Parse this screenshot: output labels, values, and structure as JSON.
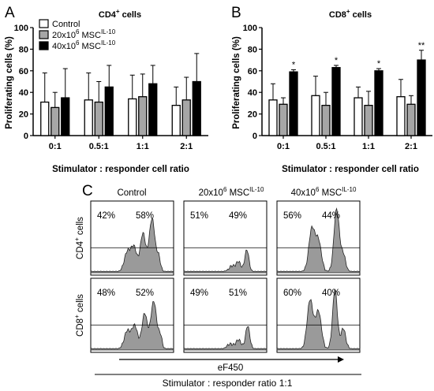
{
  "figure": {
    "panel_a_letter": "A",
    "panel_b_letter": "B",
    "panel_c_letter": "C"
  },
  "legend": {
    "items": [
      {
        "label": "Control",
        "sup": "",
        "fill": "#ffffff"
      },
      {
        "label": "20x10",
        "sup": "6",
        "suffix": " MSC",
        "suffix_sup": "IL-10",
        "fill": "#a6a6a6"
      },
      {
        "label": "40x10",
        "sup": "6",
        "suffix": " MSC",
        "suffix_sup": "IL-10",
        "fill": "#000000"
      }
    ]
  },
  "chart_data": [
    {
      "type": "bar",
      "panel": "A",
      "title": "CD4",
      "title_sup": "+",
      "title_suffix": " cells",
      "xlabel": "Stimulator : responder cell ratio",
      "ylabel": "Proliferating cells (%)",
      "ylim": [
        0,
        100
      ],
      "yticks": [
        "0",
        "20",
        "40",
        "60",
        "80",
        "100"
      ],
      "categories": [
        "0:1",
        "0.5:1",
        "1:1",
        "2:1"
      ],
      "series": [
        {
          "name": "Control",
          "values": [
            31,
            33,
            34,
            28
          ],
          "errors": [
            27,
            25,
            22,
            17
          ],
          "fill": "#ffffff"
        },
        {
          "name": "20x10^6 MSC^IL-10",
          "values": [
            26,
            31,
            36,
            33
          ],
          "errors": [
            14,
            19,
            21,
            21
          ],
          "fill": "#a6a6a6"
        },
        {
          "name": "40x10^6 MSC^IL-10",
          "values": [
            35,
            45,
            48,
            50
          ],
          "errors": [
            27,
            20,
            17,
            26
          ],
          "fill": "#000000"
        }
      ],
      "significance": [
        "",
        "",
        "",
        ""
      ]
    },
    {
      "type": "bar",
      "panel": "B",
      "title": "CD8",
      "title_sup": "+",
      "title_suffix": " cells",
      "xlabel": "Stimulator : responder cell ratio",
      "ylabel": "Proliferating cells (%)",
      "ylim": [
        0,
        100
      ],
      "yticks": [
        "0",
        "20",
        "40",
        "60",
        "80",
        "100"
      ],
      "categories": [
        "0:1",
        "0.5:1",
        "1:1",
        "2:1"
      ],
      "series": [
        {
          "name": "Control",
          "values": [
            33,
            37,
            35,
            36
          ],
          "errors": [
            15,
            18,
            10,
            16
          ],
          "fill": "#ffffff"
        },
        {
          "name": "20x10^6 MSC^IL-10",
          "values": [
            29,
            28,
            28,
            29
          ],
          "errors": [
            6,
            12,
            13,
            8
          ],
          "fill": "#a6a6a6"
        },
        {
          "name": "40x10^6 MSC^IL-10",
          "values": [
            59,
            63,
            60,
            70
          ],
          "errors": [
            2,
            2,
            2,
            9
          ],
          "fill": "#000000"
        }
      ],
      "significance": [
        "*",
        "*",
        "*",
        "**"
      ]
    }
  ],
  "flow": {
    "column_headers": [
      {
        "text": "Control",
        "sup": "",
        "suffix": "",
        "suffix_sup": ""
      },
      {
        "text": "20x10",
        "sup": "6",
        "suffix": " MSC",
        "suffix_sup": "IL-10"
      },
      {
        "text": "40x10",
        "sup": "6",
        "suffix": " MSC",
        "suffix_sup": "IL-10"
      }
    ],
    "row_labels": [
      {
        "text": "CD4",
        "sup": "+",
        "suffix": " cells"
      },
      {
        "text": "CD8",
        "sup": "+",
        "suffix": " cells"
      }
    ],
    "percentages": [
      [
        [
          "42%",
          "58%"
        ],
        [
          "51%",
          "49%"
        ],
        [
          "56%",
          "44%"
        ]
      ],
      [
        [
          "48%",
          "52%"
        ],
        [
          "49%",
          "51%"
        ],
        [
          "60%",
          "40%"
        ]
      ]
    ],
    "axis_label": "eF450",
    "footer": "Stimulator : responder ratio 1:1"
  }
}
